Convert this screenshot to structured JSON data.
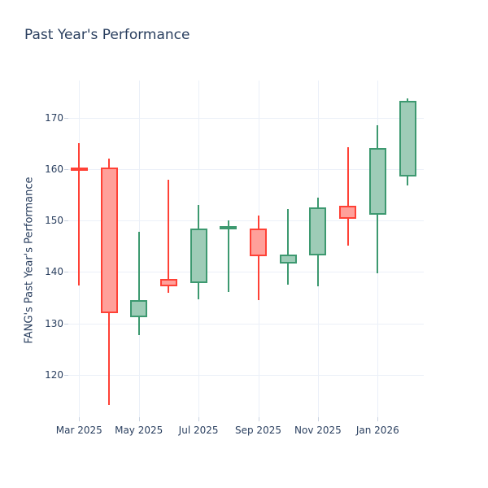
{
  "title": "Past Year's Performance",
  "colors": {
    "background": "#ffffff",
    "text": "#2a3f5f",
    "grid": "#ebf0f8",
    "tick": "#c8d2e0",
    "increasing_line": "#3D9970",
    "increasing_fill": "#9ECCB7",
    "decreasing_line": "#FF4136",
    "decreasing_fill": "#FFA09A"
  },
  "chart_data": {
    "type": "candlestick",
    "title": "Past Year's Performance",
    "ylabel": "FANG's Past Year's Performance",
    "xlabel": "",
    "x": [
      "Mar 2025",
      "Apr 2025",
      "May 2025",
      "Jun 2025",
      "Jul 2025",
      "Aug 2025",
      "Sep 2025",
      "Oct 2025",
      "Nov 2025",
      "Dec 2025",
      "Jan 2026",
      "Feb 2026"
    ],
    "open": [
      160.3,
      160.3,
      131.3,
      138.7,
      137.8,
      148.4,
      148.4,
      141.6,
      143.2,
      152.9,
      151.1,
      158.6
    ],
    "high": [
      165.0,
      162.0,
      147.8,
      158.0,
      153.0,
      150.1,
      151.0,
      152.3,
      154.5,
      164.3,
      168.5,
      173.8
    ],
    "low": [
      137.4,
      114.2,
      127.8,
      136.0,
      134.7,
      136.2,
      134.5,
      137.5,
      137.3,
      145.1,
      139.7,
      156.8
    ],
    "close": [
      159.9,
      132.0,
      134.6,
      137.3,
      148.5,
      148.9,
      143.1,
      143.4,
      152.5,
      150.4,
      164.1,
      173.2
    ],
    "xtick_indices": [
      0,
      2,
      4,
      6,
      8,
      10
    ],
    "xtick_labels": [
      "Mar 2025",
      "May 2025",
      "Jul 2025",
      "Sep 2025",
      "Nov 2025",
      "Jan 2026"
    ],
    "ytick_values": [
      120,
      130,
      140,
      150,
      160,
      170
    ],
    "ylim": [
      111.8,
      177.2
    ],
    "grid": true,
    "legend": false
  }
}
